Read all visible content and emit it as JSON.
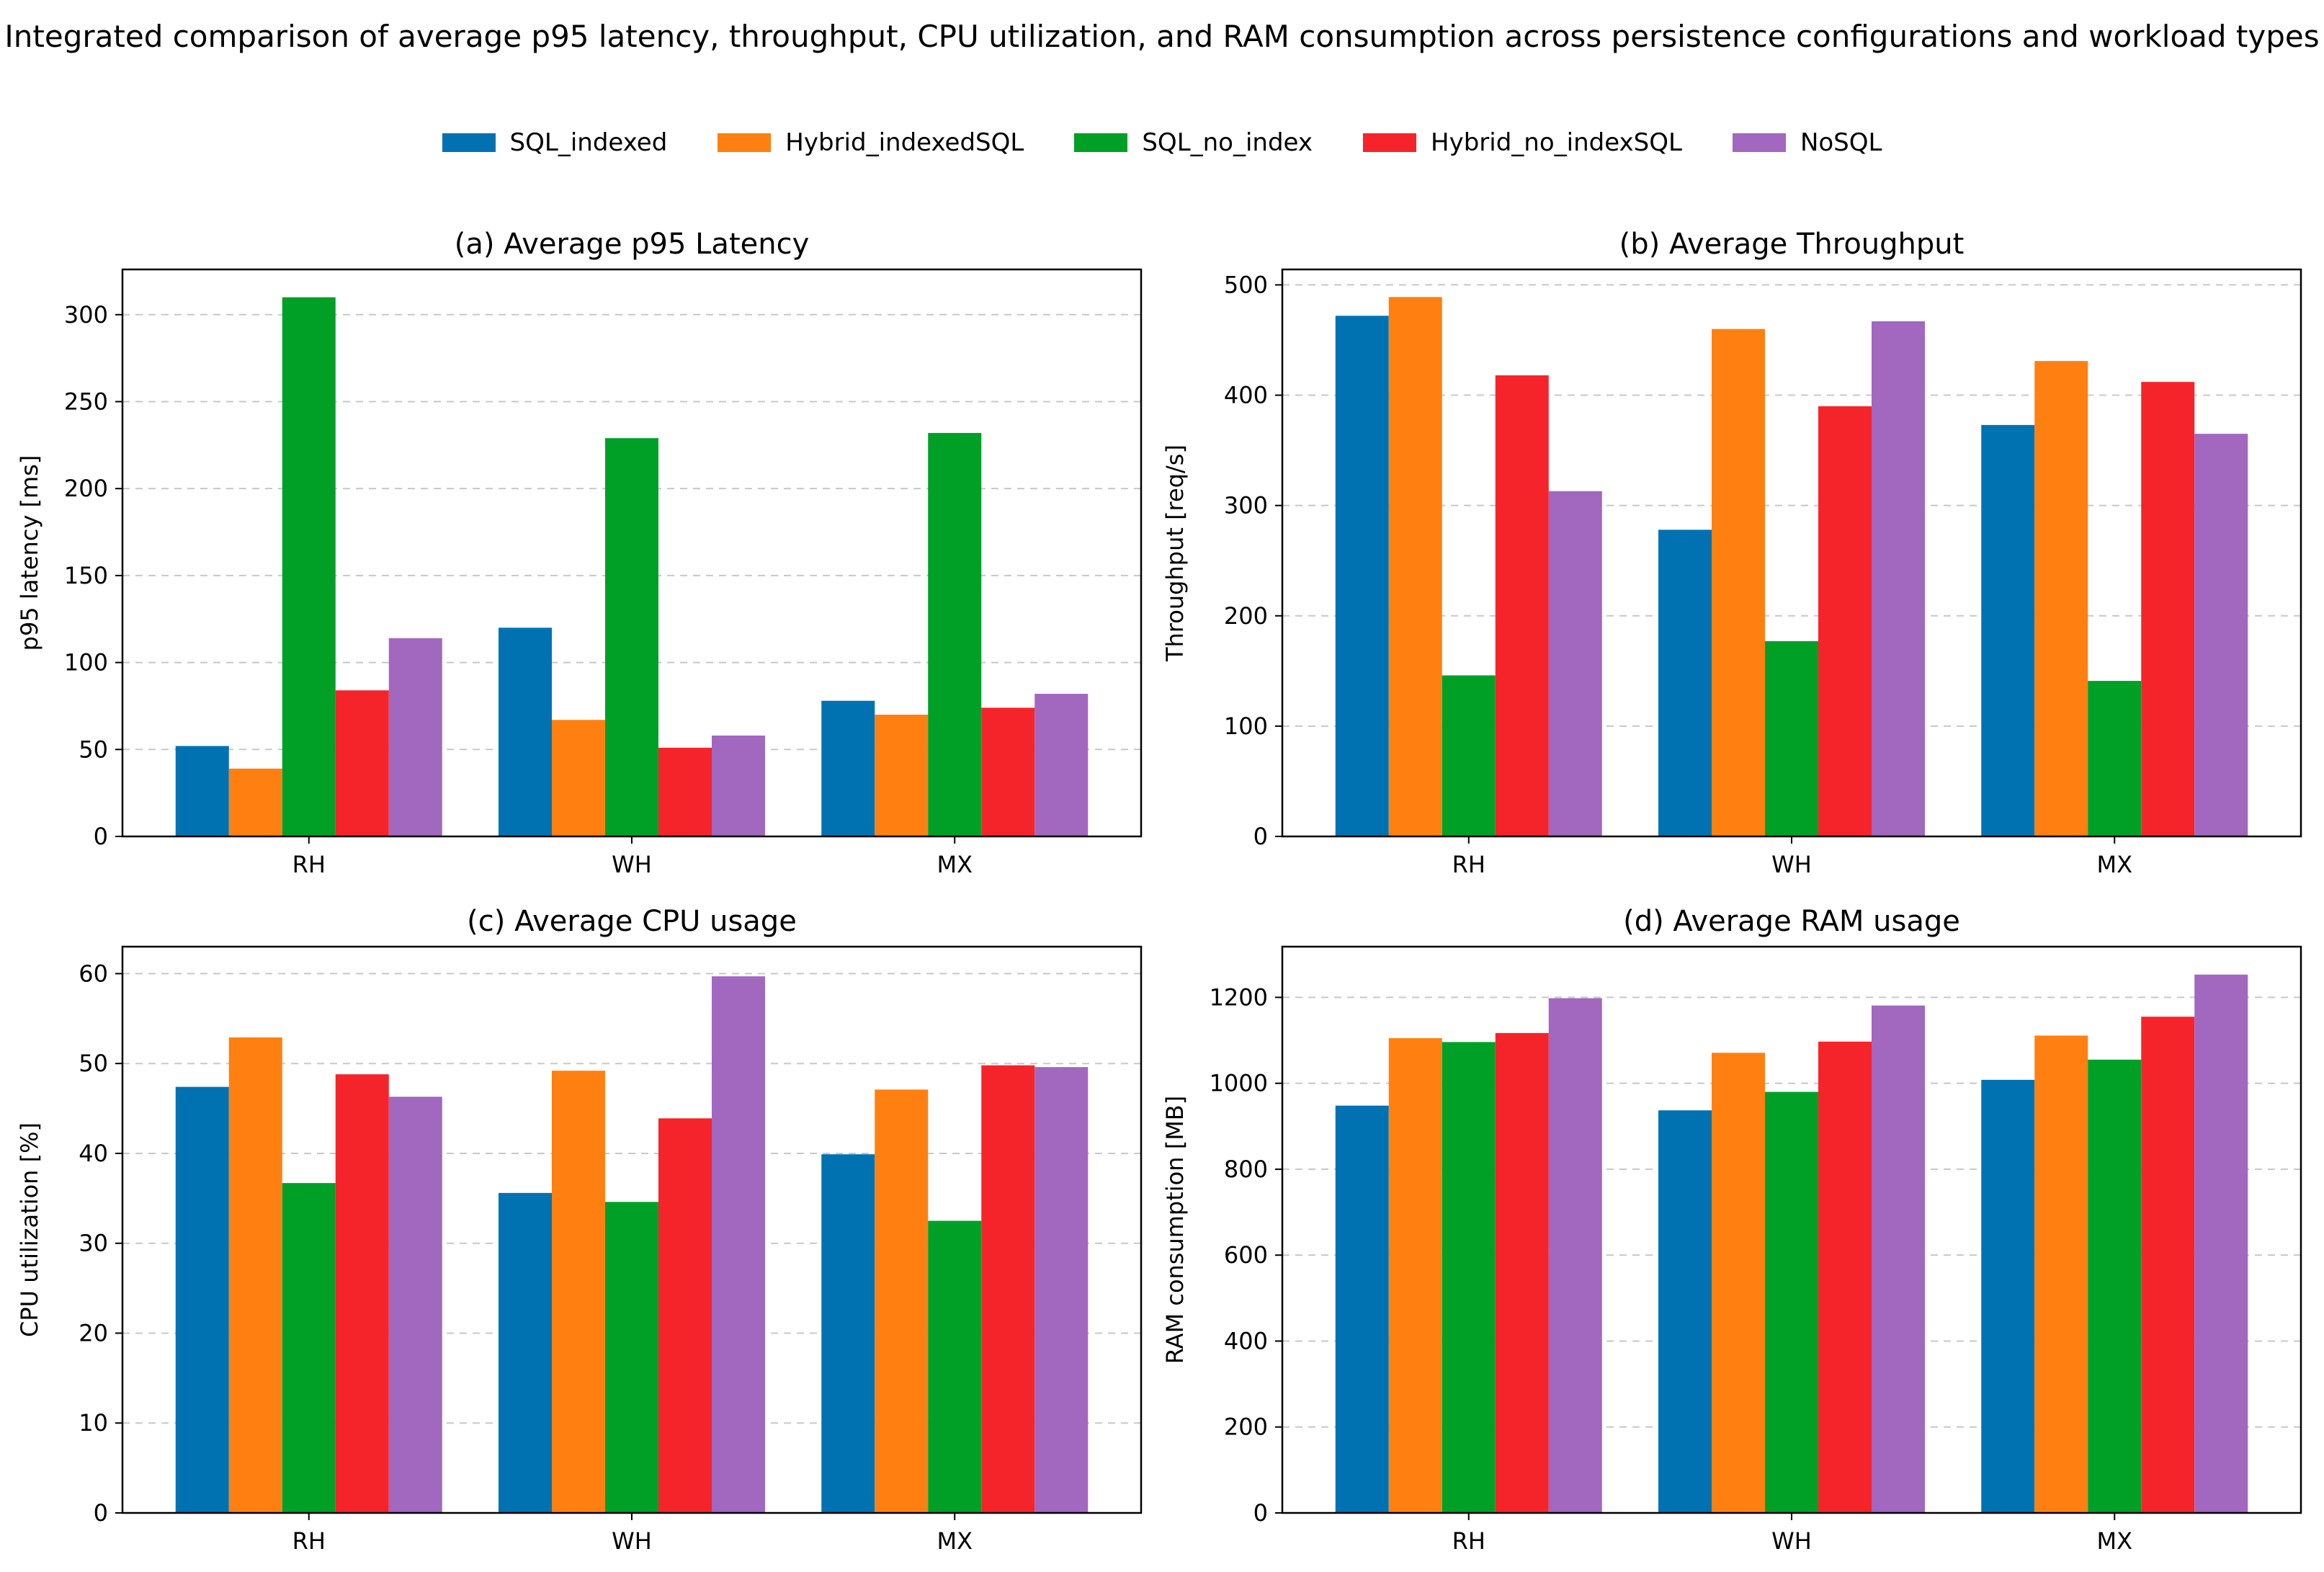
{
  "title": "Integrated comparison of average p95 latency, throughput, CPU utilization, and RAM consumption across persistence configurations and workload types",
  "legend": {
    "items": [
      {
        "label": "SQL_indexed",
        "color": "#0072b2"
      },
      {
        "label": "Hybrid_indexedSQL",
        "color": "#ff8011"
      },
      {
        "label": "SQL_no_index",
        "color": "#00a027"
      },
      {
        "label": "Hybrid_no_indexSQL",
        "color": "#f5242a"
      },
      {
        "label": "NoSQL",
        "color": "#a267bf"
      }
    ],
    "placement": "top-center"
  },
  "chart_data": [
    {
      "type": "bar",
      "title": "(a) Average p95 Latency",
      "xlabel": "",
      "ylabel": "p95 latency [ms]",
      "categories": [
        "RH",
        "WH",
        "MX"
      ],
      "ylim": [
        0,
        326
      ],
      "yticks": [
        0,
        50,
        100,
        150,
        200,
        250,
        300
      ],
      "grid": "y-dashed",
      "series": [
        {
          "name": "SQL_indexed",
          "values": [
            52,
            120,
            78
          ]
        },
        {
          "name": "Hybrid_indexedSQL",
          "values": [
            39,
            67,
            70
          ]
        },
        {
          "name": "SQL_no_index",
          "values": [
            310,
            229,
            232
          ]
        },
        {
          "name": "Hybrid_no_indexSQL",
          "values": [
            84,
            51,
            74
          ]
        },
        {
          "name": "NoSQL",
          "values": [
            114,
            58,
            82
          ]
        }
      ]
    },
    {
      "type": "bar",
      "title": "(b) Average Throughput",
      "xlabel": "",
      "ylabel": "Throughput [req/s]",
      "categories": [
        "RH",
        "WH",
        "MX"
      ],
      "ylim": [
        0,
        514
      ],
      "yticks": [
        0,
        100,
        200,
        300,
        400,
        500
      ],
      "grid": "y-dashed",
      "series": [
        {
          "name": "SQL_indexed",
          "values": [
            472,
            278,
            373
          ]
        },
        {
          "name": "Hybrid_indexedSQL",
          "values": [
            489,
            460,
            431
          ]
        },
        {
          "name": "SQL_no_index",
          "values": [
            146,
            177,
            141
          ]
        },
        {
          "name": "Hybrid_no_indexSQL",
          "values": [
            418,
            390,
            412
          ]
        },
        {
          "name": "NoSQL",
          "values": [
            313,
            467,
            365
          ]
        }
      ]
    },
    {
      "type": "bar",
      "title": "(c) Average CPU usage",
      "xlabel": "",
      "ylabel": "CPU utilization [%]",
      "categories": [
        "RH",
        "WH",
        "MX"
      ],
      "ylim": [
        0,
        63
      ],
      "yticks": [
        0,
        10,
        20,
        30,
        40,
        50,
        60
      ],
      "grid": "y-dashed",
      "series": [
        {
          "name": "SQL_indexed",
          "values": [
            47.4,
            35.6,
            39.9
          ]
        },
        {
          "name": "Hybrid_indexedSQL",
          "values": [
            52.9,
            49.2,
            47.1
          ]
        },
        {
          "name": "SQL_no_index",
          "values": [
            36.7,
            34.6,
            32.5
          ]
        },
        {
          "name": "Hybrid_no_indexSQL",
          "values": [
            48.8,
            43.9,
            49.8
          ]
        },
        {
          "name": "NoSQL",
          "values": [
            46.3,
            59.7,
            49.6
          ]
        }
      ]
    },
    {
      "type": "bar",
      "title": "(d) Average RAM usage",
      "xlabel": "",
      "ylabel": "RAM consumption [MB]",
      "categories": [
        "RH",
        "WH",
        "MX"
      ],
      "ylim": [
        0,
        1318
      ],
      "yticks": [
        0,
        200,
        400,
        600,
        800,
        1000,
        1200
      ],
      "grid": "y-dashed",
      "series": [
        {
          "name": "SQL_indexed",
          "values": [
            948,
            937,
            1008
          ]
        },
        {
          "name": "Hybrid_indexedSQL",
          "values": [
            1105,
            1071,
            1111
          ]
        },
        {
          "name": "SQL_no_index",
          "values": [
            1096,
            980,
            1055
          ]
        },
        {
          "name": "Hybrid_no_indexSQL",
          "values": [
            1117,
            1097,
            1155
          ]
        },
        {
          "name": "NoSQL",
          "values": [
            1198,
            1181,
            1253
          ]
        }
      ]
    }
  ]
}
